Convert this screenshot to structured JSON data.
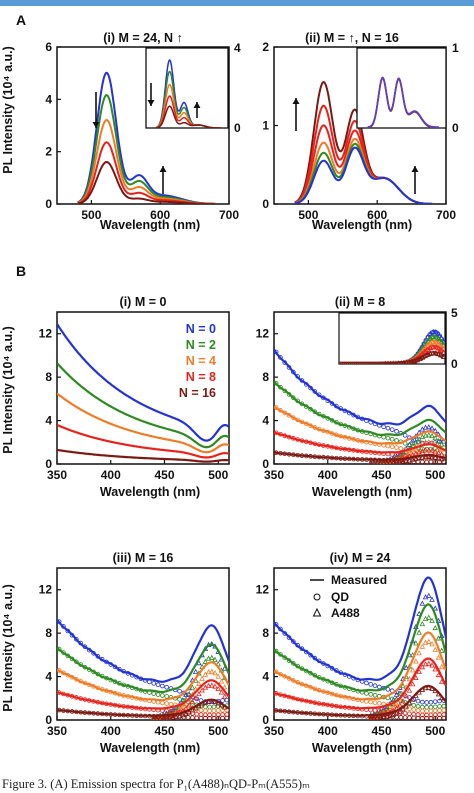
{
  "page": {
    "caption": "Figure 3. (A) Emission spectra for P₁(A488)ₙQD-Pₘ(A555)ₘ"
  },
  "colors": {
    "N0": "#2433d6",
    "N2": "#2e8b22",
    "N4": "#f07c28",
    "N8": "#e8231c",
    "N16": "#7b1a14",
    "inset_purple": "#6a3fb5"
  },
  "panelA": {
    "label": "A",
    "ylabel": "PL Intensity (10⁴ a.u.)",
    "xlabel": "Wavelength (nm)",
    "i_title": "(i) M = 24, N ↑",
    "ii_title": "(ii) M = ↑, N = 16"
  },
  "panelB": {
    "label": "B",
    "ylabel": "PL Intensity (10⁴ a.u.)",
    "xlabel": "Wavelength (nm)",
    "i_title": "(i) M = 0",
    "ii_title": "(ii) M = 8",
    "iii_title": "(iii) M = 16",
    "iv_title": "(iv) M = 24",
    "legend_series": [
      "N = 0",
      "N = 2",
      "N = 4",
      "N = 8",
      "N = 16"
    ],
    "legend_markers": [
      "Measured",
      "QD",
      "A488"
    ]
  },
  "chart_data": [
    {
      "id": "A-i",
      "type": "line",
      "title": "(i) M = 24, N ↑",
      "xlabel": "Wavelength (nm)",
      "ylabel": "PL Intensity (10⁴ a.u.)",
      "xlim": [
        450,
        700
      ],
      "ylim": [
        0,
        6
      ],
      "xticks": [
        500,
        600,
        700
      ],
      "yticks": [
        0,
        2,
        4,
        6
      ],
      "series": [
        {
          "color": "#2433d6",
          "peak": 5.0
        },
        {
          "color": "#2e8b22",
          "peak": 4.15
        },
        {
          "color": "#f07c28",
          "peak": 3.2
        },
        {
          "color": "#e8231c",
          "peak": 2.35
        },
        {
          "color": "#7b1a14",
          "peak": 1.6
        }
      ],
      "inset": {
        "ylim": [
          0,
          4
        ],
        "yticks": [
          0,
          4
        ]
      }
    },
    {
      "id": "A-ii",
      "type": "line",
      "title": "(ii) M = ↑, N = 16",
      "xlabel": "Wavelength (nm)",
      "xlim": [
        450,
        700
      ],
      "ylim": [
        0,
        2
      ],
      "xticks": [
        500,
        600,
        700
      ],
      "yticks": [
        0,
        1,
        2
      ],
      "series": [
        {
          "color": "#7b1a14",
          "peak": 1.55
        },
        {
          "color": "#e8231c",
          "peak": 1.25
        },
        {
          "color": "#e8231c",
          "peak": 1.0
        },
        {
          "color": "#f07c28",
          "peak": 0.78
        },
        {
          "color": "#2e8b22",
          "peak": 0.65
        },
        {
          "color": "#2433d6",
          "peak": 0.55
        }
      ],
      "inset": {
        "ylim": [
          0,
          1
        ],
        "yticks": [
          0,
          1
        ]
      }
    },
    {
      "id": "B-i",
      "type": "line",
      "title": "(i) M = 0",
      "xlabel": "Wavelength (nm)",
      "ylabel": "PL Intensity (10⁴ a.u.)",
      "xlim": [
        350,
        510
      ],
      "ylim": [
        0,
        14
      ],
      "xticks": [
        350,
        400,
        450,
        500
      ],
      "yticks": [
        0,
        4,
        8,
        12
      ],
      "series": [
        {
          "name": "N = 0",
          "color": "#2433d6",
          "start": 12.9
        },
        {
          "name": "N = 2",
          "color": "#2e8b22",
          "start": 9.3
        },
        {
          "name": "N = 4",
          "color": "#f07c28",
          "start": 6.5
        },
        {
          "name": "N = 8",
          "color": "#e8231c",
          "start": 3.6
        },
        {
          "name": "N = 16",
          "color": "#7b1a14",
          "start": 1.3
        }
      ]
    },
    {
      "id": "B-ii",
      "type": "line",
      "title": "(ii) M = 8",
      "xlabel": "Wavelength (nm)",
      "xlim": [
        350,
        510
      ],
      "ylim": [
        0,
        14
      ],
      "xticks": [
        350,
        400,
        450,
        500
      ],
      "yticks": [
        0,
        4,
        8,
        12
      ],
      "inset": {
        "ylim": [
          0,
          5
        ],
        "yticks": [
          0,
          5
        ]
      }
    },
    {
      "id": "B-iii",
      "type": "line",
      "title": "(iii) M = 16",
      "xlabel": "Wavelength (nm)",
      "ylabel": "PL Intensity (10⁴ a.u.)",
      "xlim": [
        350,
        510
      ],
      "ylim": [
        0,
        14
      ],
      "xticks": [
        350,
        400,
        450,
        500
      ],
      "yticks": [
        0,
        4,
        8,
        12
      ]
    },
    {
      "id": "B-iv",
      "type": "line",
      "title": "(iv) M = 24",
      "xlabel": "Wavelength (nm)",
      "xlim": [
        350,
        510
      ],
      "ylim": [
        0,
        14
      ],
      "xticks": [
        350,
        400,
        450,
        500
      ],
      "yticks": [
        0,
        4,
        8,
        12
      ]
    }
  ]
}
